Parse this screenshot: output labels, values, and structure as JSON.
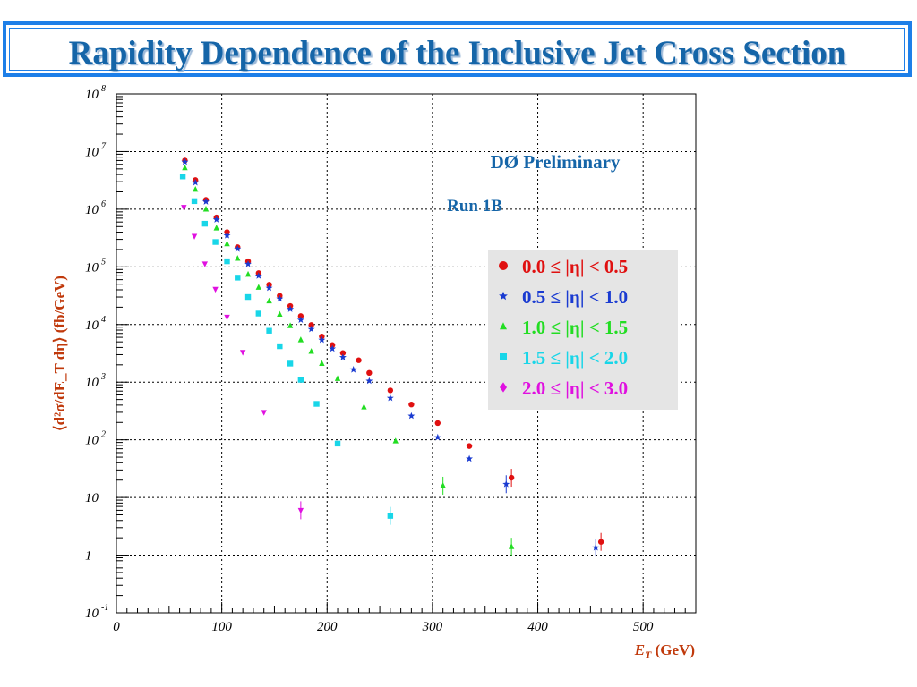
{
  "title": "Rapidity Dependence of the Inclusive Jet Cross Section",
  "chart_data": {
    "type": "scatter",
    "xlabel_main": "E",
    "xlabel_sub": "T",
    "xlabel_rest": " (GeV)",
    "ylabel": "⟨d²σ/dE_T dη⟩ (fb/GeV)",
    "xlim": [
      0,
      550
    ],
    "ylim_log10": [
      -1,
      8
    ],
    "y_scale": "log",
    "grid": true,
    "x_ticks": [
      0,
      100,
      200,
      300,
      400,
      500
    ],
    "y_ticks": [
      {
        "base": "10",
        "exp": "8",
        "v": 8
      },
      {
        "base": "10",
        "exp": "7",
        "v": 7
      },
      {
        "base": "10",
        "exp": "6",
        "v": 6
      },
      {
        "base": "10",
        "exp": "5",
        "v": 5
      },
      {
        "base": "10",
        "exp": "4",
        "v": 4
      },
      {
        "base": "10",
        "exp": "3",
        "v": 3
      },
      {
        "base": "10",
        "exp": "2",
        "v": 2
      },
      {
        "base": "10",
        "exp": "",
        "v": 1
      },
      {
        "base": "1",
        "exp": "",
        "v": 0
      },
      {
        "base": "10",
        "exp": "-1",
        "v": -1
      }
    ],
    "annotations": {
      "preliminary": "DØ Preliminary",
      "run": "Run 1B"
    },
    "series": [
      {
        "name": "0.0 ≤ |η| < 0.5",
        "color": "#e01010",
        "marker": "circle",
        "x": [
          65,
          75,
          85,
          95,
          105,
          115,
          125,
          135,
          145,
          155,
          165,
          175,
          185,
          195,
          205,
          215,
          230,
          240,
          260,
          280,
          305,
          335,
          375,
          460
        ],
        "y": [
          7000000,
          3200000,
          1450000,
          720000,
          400000,
          220000,
          125000,
          78000,
          49000,
          31500,
          21000,
          14000,
          9800,
          6200,
          4400,
          3200,
          2400,
          1450,
          720,
          410,
          195,
          78,
          22,
          1.7
        ]
      },
      {
        "name": "0.5 ≤ |η| < 1.0",
        "color": "#1a3bd1",
        "marker": "star",
        "x": [
          65,
          75,
          85,
          95,
          105,
          115,
          125,
          135,
          145,
          155,
          165,
          175,
          185,
          195,
          205,
          215,
          225,
          240,
          260,
          280,
          305,
          335,
          370,
          455
        ],
        "y": [
          6600000,
          2900000,
          1350000,
          660000,
          350000,
          205000,
          112000,
          70000,
          43000,
          28000,
          18500,
          12000,
          8300,
          5400,
          3800,
          2700,
          1650,
          1050,
          530,
          260,
          110,
          47,
          17,
          1.35
        ]
      },
      {
        "name": "1.0 ≤ |η| < 1.5",
        "color": "#22dd22",
        "marker": "triangle",
        "x": [
          65,
          75,
          85,
          95,
          105,
          115,
          125,
          135,
          145,
          155,
          165,
          175,
          185,
          195,
          210,
          235,
          265,
          310,
          375
        ],
        "y": [
          5200000,
          2200000,
          1000000,
          470000,
          250000,
          140000,
          74000,
          44000,
          25500,
          15000,
          9500,
          5400,
          3400,
          2100,
          1150,
          370,
          95,
          16,
          1.4
        ]
      },
      {
        "name": "1.5 ≤ |η| < 2.0",
        "color": "#18d6e8",
        "marker": "square",
        "x": [
          63,
          74,
          84,
          94,
          105,
          115,
          125,
          135,
          145,
          155,
          165,
          175,
          190,
          210,
          260
        ],
        "y": [
          3700000,
          1380000,
          560000,
          270000,
          125000,
          65000,
          30000,
          15500,
          7800,
          4200,
          2100,
          1100,
          420,
          86,
          4.8
        ]
      },
      {
        "name": "2.0 ≤ |η| < 3.0",
        "color": "#e010e0",
        "marker": "triangle-down",
        "x": [
          64,
          74,
          84,
          94,
          105,
          120,
          140,
          175
        ],
        "y": [
          1080000,
          340000,
          113000,
          41000,
          13500,
          3300,
          300,
          6
        ]
      }
    ]
  }
}
